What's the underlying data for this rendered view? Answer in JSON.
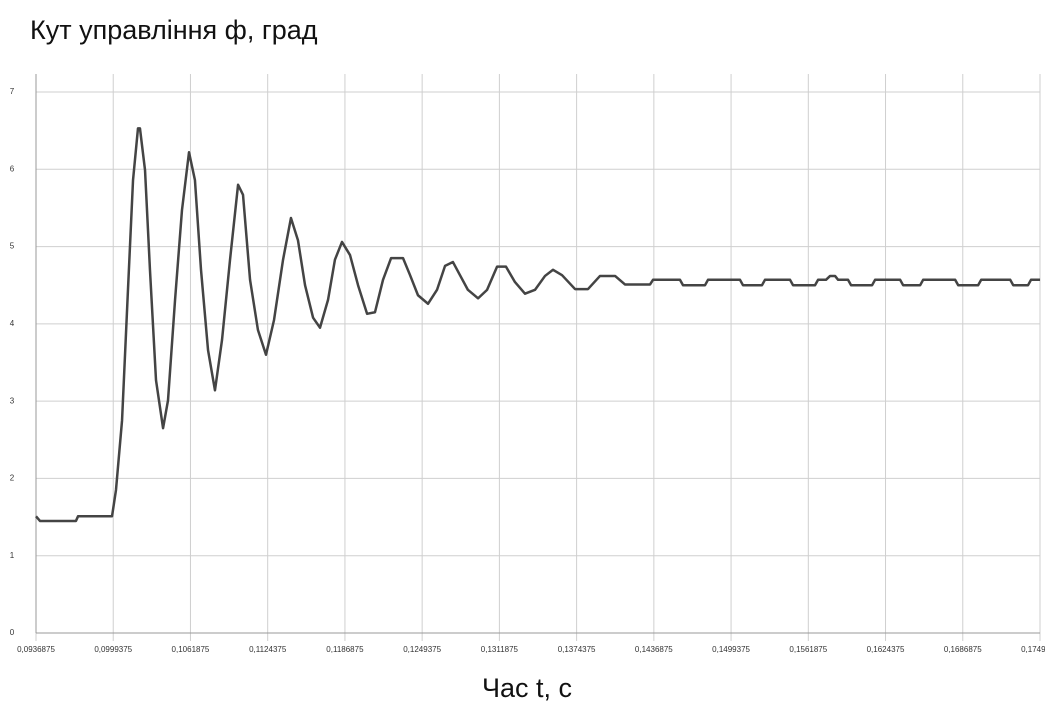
{
  "chart_data": {
    "type": "line",
    "title": "Кут управління ф, град",
    "x_label": "Час t, с",
    "xlim": [
      0.0936875,
      0.1749375
    ],
    "ylim": [
      0,
      7
    ],
    "yticks": [
      0,
      1,
      2,
      3,
      4,
      5,
      6,
      7
    ],
    "xticks": [
      {
        "value": 0.0936875,
        "label": "0,0936875"
      },
      {
        "value": 0.0999375,
        "label": "0,0999375"
      },
      {
        "value": 0.1061875,
        "label": "0,1061875"
      },
      {
        "value": 0.1124375,
        "label": "0,1124375"
      },
      {
        "value": 0.1186875,
        "label": "0,1186875"
      },
      {
        "value": 0.1249375,
        "label": "0,1249375"
      },
      {
        "value": 0.1311875,
        "label": "0,1311875"
      },
      {
        "value": 0.1374375,
        "label": "0,1374375"
      },
      {
        "value": 0.1436875,
        "label": "0,1436875"
      },
      {
        "value": 0.1499375,
        "label": "0,1499375"
      },
      {
        "value": 0.1561875,
        "label": "0,1561875"
      },
      {
        "value": 0.1624375,
        "label": "0,1624375"
      },
      {
        "value": 0.1686875,
        "label": "0,1686875"
      },
      {
        "value": 0.1749375,
        "label": "0,1749375"
      }
    ],
    "grid": true,
    "x": [
      0.09369,
      0.09401,
      0.09692,
      0.09709,
      0.09984,
      0.10016,
      0.10065,
      0.10113,
      0.10154,
      0.10194,
      0.1021,
      0.10251,
      0.10291,
      0.1034,
      0.10397,
      0.10437,
      0.10494,
      0.1055,
      0.10607,
      0.10655,
      0.10704,
      0.10761,
      0.10817,
      0.10874,
      0.10939,
      0.11004,
      0.11044,
      0.11101,
      0.11165,
      0.1123,
      0.11295,
      0.11368,
      0.11432,
      0.11489,
      0.11546,
      0.11611,
      0.11667,
      0.11732,
      0.11788,
      0.11845,
      0.1191,
      0.11975,
      0.12048,
      0.12112,
      0.12177,
      0.12242,
      0.12339,
      0.12396,
      0.1246,
      0.12541,
      0.12614,
      0.12679,
      0.12743,
      0.128,
      0.12864,
      0.12946,
      0.13019,
      0.131,
      0.13172,
      0.13245,
      0.13326,
      0.13407,
      0.13488,
      0.13553,
      0.13626,
      0.13731,
      0.13836,
      0.13933,
      0.14055,
      0.14135,
      0.14338,
      0.14362,
      0.1458,
      0.14605,
      0.14783,
      0.14807,
      0.15066,
      0.1509,
      0.15244,
      0.15268,
      0.15471,
      0.15495,
      0.15673,
      0.15698,
      0.15762,
      0.15795,
      0.15835,
      0.1586,
      0.1594,
      0.15965,
      0.16135,
      0.16159,
      0.16362,
      0.16386,
      0.16524,
      0.16548,
      0.16807,
      0.16832,
      0.16993,
      0.17018,
      0.17253,
      0.17277,
      0.17397,
      0.17421,
      0.17494
    ],
    "series": [
      {
        "color": "#444444",
        "values": [
          1.51,
          1.45,
          1.45,
          1.51,
          1.51,
          1.85,
          2.75,
          4.44,
          5.86,
          6.53,
          6.53,
          5.99,
          4.7,
          3.27,
          2.65,
          3.01,
          4.31,
          5.47,
          6.22,
          5.86,
          4.7,
          3.66,
          3.14,
          3.79,
          4.83,
          5.8,
          5.67,
          4.57,
          3.92,
          3.6,
          4.05,
          4.83,
          5.37,
          5.08,
          4.5,
          4.08,
          3.95,
          4.31,
          4.83,
          5.06,
          4.89,
          4.5,
          4.13,
          4.15,
          4.57,
          4.85,
          4.85,
          4.63,
          4.37,
          4.26,
          4.44,
          4.75,
          4.8,
          4.63,
          4.44,
          4.33,
          4.44,
          4.74,
          4.74,
          4.54,
          4.39,
          4.44,
          4.62,
          4.7,
          4.63,
          4.45,
          4.45,
          4.62,
          4.62,
          4.51,
          4.51,
          4.57,
          4.57,
          4.5,
          4.5,
          4.57,
          4.57,
          4.5,
          4.5,
          4.57,
          4.57,
          4.5,
          4.5,
          4.57,
          4.57,
          4.62,
          4.62,
          4.57,
          4.57,
          4.5,
          4.5,
          4.57,
          4.57,
          4.5,
          4.5,
          4.57,
          4.57,
          4.5,
          4.5,
          4.57,
          4.57,
          4.5,
          4.5,
          4.57,
          4.57
        ]
      }
    ]
  }
}
